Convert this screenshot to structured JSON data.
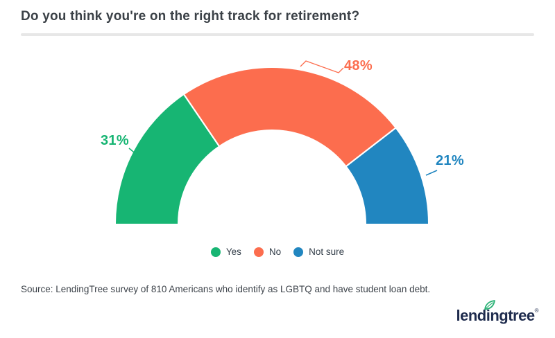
{
  "header": {
    "title": "Do you think you're on the right track for retirement?"
  },
  "chart_data": {
    "type": "pie",
    "variant": "half-donut",
    "title": "Do you think you're on the right track for retirement?",
    "categories": [
      "Yes",
      "No",
      "Not sure"
    ],
    "values": [
      31,
      48,
      21
    ],
    "unit": "%",
    "labels": [
      "31%",
      "48%",
      "21%"
    ],
    "colors": [
      "#17b573",
      "#fc6d4e",
      "#2186c0"
    ],
    "start_angle_deg": 180,
    "end_angle_deg": 0,
    "inner_radius_ratio": 0.6,
    "legend_position": "bottom",
    "grid": false
  },
  "legend": {
    "items": [
      {
        "label": "Yes",
        "color": "#17b573"
      },
      {
        "label": "No",
        "color": "#fc6d4e"
      },
      {
        "label": "Not sure",
        "color": "#2186c0"
      }
    ]
  },
  "source": {
    "text": "Source: LendingTree survey of 810 Americans who identify as LGBTQ and have student loan debt."
  },
  "logo": {
    "part1": "lend",
    "part2": "i",
    "part3": "ngtree",
    "mark": "®",
    "leaf_color": "#2bb276",
    "text_color": "#1e2b4d"
  }
}
